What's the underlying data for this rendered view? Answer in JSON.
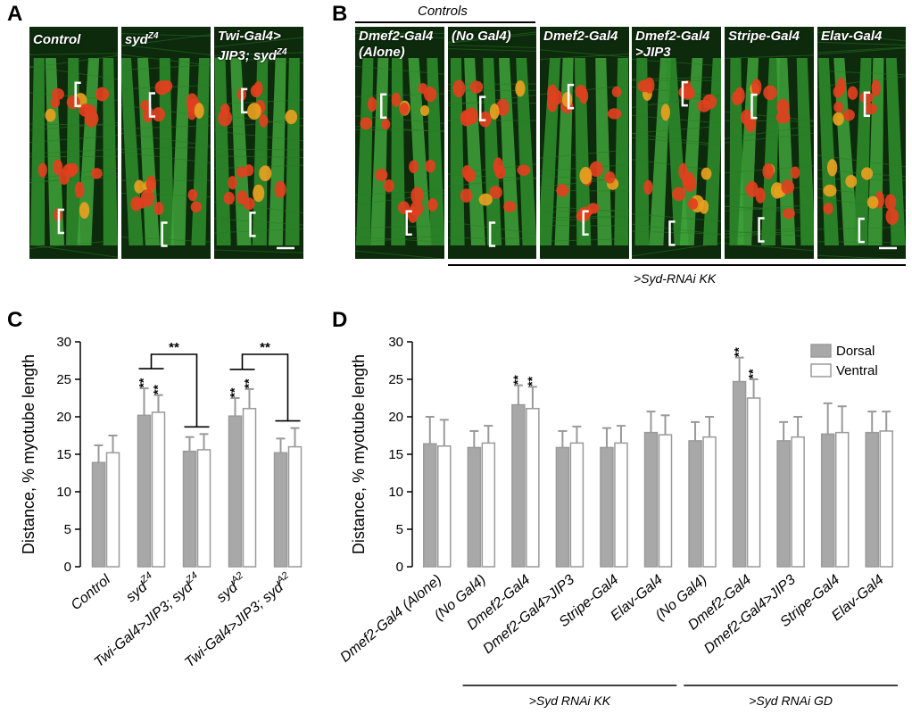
{
  "panel_labels": {
    "A": "A",
    "B": "B",
    "C": "C",
    "D": "D"
  },
  "panel_a": {
    "images": [
      {
        "title": "Control",
        "sup": ""
      },
      {
        "title": "syd",
        "sup": "Z4"
      },
      {
        "title": "Twi-Gal4>\nJIP3; syd",
        "sup": "Z4"
      }
    ]
  },
  "panel_b": {
    "controls_label": "Controls",
    "group_label": ">Syd-RNAi KK",
    "images": [
      {
        "title": "Dmef2-Gal4\n(Alone)"
      },
      {
        "title": "(No Gal4)"
      },
      {
        "title": "Dmef2-Gal4"
      },
      {
        "title": "Dmef2-Gal4\n>JIP3"
      },
      {
        "title": "Stripe-Gal4"
      },
      {
        "title": "Elav-Gal4"
      }
    ]
  },
  "colors": {
    "dorsal": "#a8a8a8",
    "ventral": "#ffffff",
    "stroke": "#9a9a9a",
    "text": "#000000"
  },
  "chart_data": [
    {
      "type": "bar",
      "panel": "C",
      "ylabel": "Distance, % myotube length",
      "ylim": [
        0,
        30
      ],
      "yticks": [
        0,
        5,
        10,
        15,
        20,
        25,
        30
      ],
      "categories": [
        "Control",
        "syd^Z4",
        "Twi-Gal4>JIP3; syd^Z4",
        "syd^A2",
        "Twi-Gal4>JIP3; syd^A2"
      ],
      "category_labels": [
        {
          "main": "Control",
          "sup": ""
        },
        {
          "main": "syd",
          "sup": "Z4"
        },
        {
          "main": "Twi-Gal4>JIP3; syd",
          "sup": "Z4"
        },
        {
          "main": "syd",
          "sup": "A2"
        },
        {
          "main": "Twi-Gal4>JIP3; syd",
          "sup": "A2"
        }
      ],
      "series": [
        {
          "name": "Dorsal",
          "values": [
            13.9,
            20.2,
            15.4,
            20.1,
            15.2
          ],
          "errors": [
            2.3,
            3.6,
            1.9,
            2.4,
            1.9
          ]
        },
        {
          "name": "Ventral",
          "values": [
            15.2,
            20.6,
            15.6,
            21.1,
            16.0
          ],
          "errors": [
            2.3,
            2.3,
            2.1,
            2.6,
            2.5
          ]
        }
      ],
      "significance": [
        {
          "category": 1,
          "series": 0,
          "text": "**"
        },
        {
          "category": 1,
          "series": 1,
          "text": "**"
        },
        {
          "category": 3,
          "series": 0,
          "text": "**"
        },
        {
          "category": 3,
          "series": 1,
          "text": "**"
        }
      ],
      "comparisons": [
        {
          "from": 1,
          "to": 2,
          "text": "**"
        },
        {
          "from": 3,
          "to": 4,
          "text": "**"
        }
      ]
    },
    {
      "type": "bar",
      "panel": "D",
      "ylabel": "Distance, % myotube length",
      "ylim": [
        0,
        30
      ],
      "yticks": [
        0,
        5,
        10,
        15,
        20,
        25,
        30
      ],
      "legend_position": "top-right",
      "categories": [
        "Dmef2-Gal4 (Alone)",
        "(No Gal4)",
        "Dmef2-Gal4",
        "Dmef2-Gal4>JIP3",
        "Stripe-Gal4",
        "Elav-Gal4",
        "(No Gal4)",
        "Dmef2-Gal4",
        "Dmef2-Gal4>JIP3",
        "Stripe-Gal4",
        "Elav-Gal4"
      ],
      "series": [
        {
          "name": "Dorsal",
          "values": [
            16.4,
            15.9,
            21.6,
            15.9,
            15.9,
            17.9,
            16.8,
            24.7,
            16.8,
            17.7,
            17.9
          ],
          "errors": [
            3.6,
            2.2,
            2.6,
            2.2,
            2.6,
            2.8,
            2.5,
            3.2,
            2.5,
            4.1,
            2.8
          ]
        },
        {
          "name": "Ventral",
          "values": [
            16.1,
            16.5,
            21.1,
            16.5,
            16.5,
            17.6,
            17.3,
            22.5,
            17.3,
            17.9,
            18.1
          ],
          "errors": [
            3.5,
            2.3,
            2.9,
            2.2,
            2.3,
            2.6,
            2.7,
            2.5,
            2.7,
            3.5,
            2.6
          ]
        }
      ],
      "significance": [
        {
          "category": 2,
          "series": 0,
          "text": "**"
        },
        {
          "category": 2,
          "series": 1,
          "text": "**"
        },
        {
          "category": 7,
          "series": 0,
          "text": "**"
        },
        {
          "category": 7,
          "series": 1,
          "text": "**"
        }
      ],
      "groups": [
        {
          "label": ">Syd RNAi KK",
          "from": 1,
          "to": 5
        },
        {
          "label": ">Syd RNAi GD",
          "from": 6,
          "to": 10
        }
      ]
    }
  ]
}
